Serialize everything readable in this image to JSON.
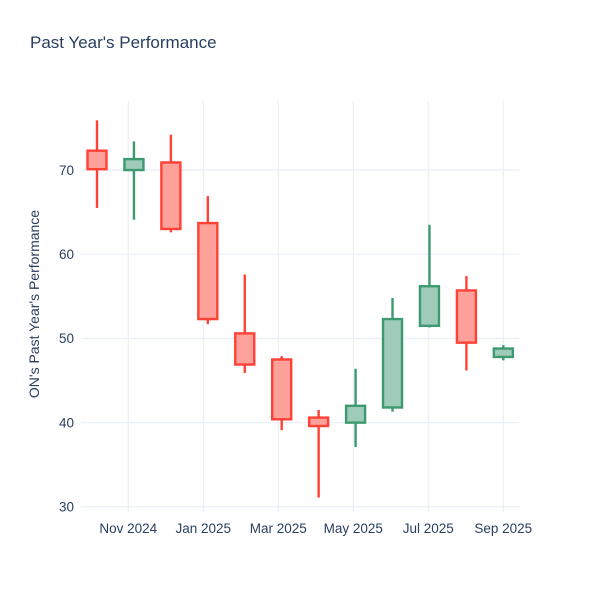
{
  "page": {
    "title": "Past Year's Performance"
  },
  "chart_data": {
    "type": "candlestick",
    "title": "Past Year's Performance",
    "xlabel": "",
    "ylabel": "ON's Past Year's Performance",
    "x_tick_labels": [
      "Nov 2024",
      "Jan 2025",
      "Mar 2025",
      "May 2025",
      "Jul 2025",
      "Sep 2025"
    ],
    "y_ticks": [
      30,
      40,
      50,
      60,
      70
    ],
    "ylim": [
      30.1,
      78.2
    ],
    "grid": true,
    "legend_position": "none",
    "candles": [
      {
        "month": "Oct 2024",
        "open": 72.3,
        "high": 75.9,
        "low": 65.5,
        "close": 70.1,
        "direction": "decreasing"
      },
      {
        "month": "Nov 2024",
        "open": 70.0,
        "high": 73.4,
        "low": 64.1,
        "close": 71.3,
        "direction": "increasing"
      },
      {
        "month": "Dec 2024",
        "open": 70.9,
        "high": 74.2,
        "low": 62.6,
        "close": 63.0,
        "direction": "decreasing"
      },
      {
        "month": "Jan 2025",
        "open": 63.7,
        "high": 66.9,
        "low": 51.7,
        "close": 52.3,
        "direction": "decreasing"
      },
      {
        "month": "Feb 2025",
        "open": 50.6,
        "high": 57.6,
        "low": 45.9,
        "close": 46.9,
        "direction": "decreasing"
      },
      {
        "month": "Mar 2025",
        "open": 47.5,
        "high": 47.9,
        "low": 39.1,
        "close": 40.4,
        "direction": "decreasing"
      },
      {
        "month": "Apr 2025",
        "open": 40.6,
        "high": 41.5,
        "low": 31.1,
        "close": 39.6,
        "direction": "decreasing"
      },
      {
        "month": "May 2025",
        "open": 40.0,
        "high": 46.4,
        "low": 37.1,
        "close": 42.0,
        "direction": "increasing"
      },
      {
        "month": "Jun 2025",
        "open": 41.8,
        "high": 54.8,
        "low": 41.3,
        "close": 52.3,
        "direction": "increasing"
      },
      {
        "month": "Jul 2025",
        "open": 51.5,
        "high": 63.5,
        "low": 51.3,
        "close": 56.2,
        "direction": "increasing"
      },
      {
        "month": "Aug 2025",
        "open": 55.7,
        "high": 57.4,
        "low": 46.2,
        "close": 49.5,
        "direction": "decreasing"
      },
      {
        "month": "Sep 2025",
        "open": 47.8,
        "high": 49.2,
        "low": 47.4,
        "close": 48.8,
        "direction": "increasing"
      }
    ],
    "colors": {
      "increasing_line": "#3D9970",
      "increasing_fill": "#9ECCB8",
      "decreasing_line": "#FF4136",
      "decreasing_fill": "#FFA19B",
      "grid": "#EBF0F8",
      "text": "#2a3f5f",
      "background": "#FFFFFF"
    }
  }
}
